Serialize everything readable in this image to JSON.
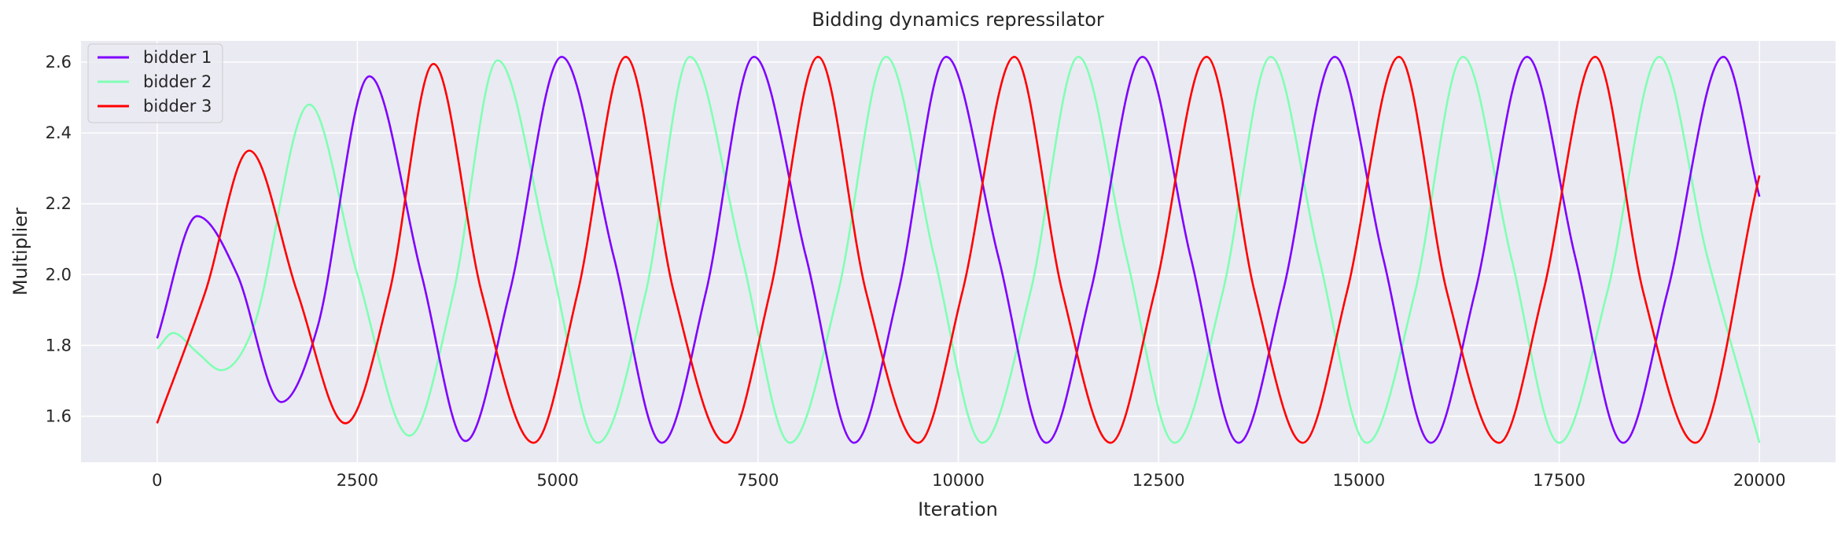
{
  "chart_data": {
    "type": "line",
    "title": "Bidding dynamics repressilator",
    "xlabel": "Iteration",
    "ylabel": "Multiplier",
    "xlim": [
      -950,
      20950
    ],
    "ylim": [
      1.47,
      2.66
    ],
    "xticks": [
      0,
      2500,
      5000,
      7500,
      10000,
      12500,
      15000,
      17500,
      20000
    ],
    "xtick_labels": [
      "0",
      "2500",
      "5000",
      "7500",
      "10000",
      "12500",
      "15000",
      "17500",
      "20000"
    ],
    "yticks": [
      1.6,
      1.8,
      2.0,
      2.2,
      2.4,
      2.6
    ],
    "ytick_labels": [
      "1.6",
      "1.8",
      "2.0",
      "2.2",
      "2.4",
      "2.6"
    ],
    "grid": true,
    "legend_position": "top-left",
    "colors": {
      "background": "#eaeaf2",
      "grid": "#ffffff",
      "bidder1": "#7f00ff",
      "bidder2": "#80ffb4",
      "bidder3": "#ff0000"
    },
    "series": [
      {
        "name": "bidder 1",
        "color": "#7f00ff",
        "x": [
          0,
          500,
          1000,
          1550,
          2000,
          2650,
          3300,
          3850,
          4400,
          5050,
          5700,
          6300,
          6850,
          7450,
          8100,
          8700,
          9250,
          9850,
          10500,
          11100,
          11650,
          12300,
          12900,
          13500,
          14050,
          14700,
          15300,
          15900,
          16450,
          17100,
          17700,
          18300,
          18850,
          19550,
          20000
        ],
        "y": [
          1.82,
          2.165,
          2.0,
          1.64,
          1.85,
          2.56,
          2.0,
          1.53,
          1.95,
          2.615,
          2.05,
          1.525,
          1.95,
          2.615,
          2.05,
          1.525,
          1.95,
          2.615,
          2.05,
          1.525,
          1.95,
          2.615,
          2.05,
          1.525,
          1.95,
          2.615,
          2.05,
          1.525,
          1.95,
          2.615,
          2.05,
          1.525,
          1.95,
          2.615,
          2.22
        ]
      },
      {
        "name": "bidder 2",
        "color": "#80ffb4",
        "x": [
          0,
          200,
          500,
          800,
          1200,
          1900,
          2500,
          3150,
          3700,
          4250,
          4900,
          5500,
          6100,
          6650,
          7300,
          7900,
          8500,
          9100,
          9700,
          10300,
          10900,
          11500,
          12100,
          12700,
          13300,
          13900,
          14500,
          15100,
          15700,
          16300,
          16900,
          17500,
          18100,
          18750,
          19350,
          20000
        ],
        "y": [
          1.79,
          1.835,
          1.78,
          1.73,
          1.85,
          2.48,
          2.0,
          1.545,
          1.95,
          2.605,
          2.05,
          1.525,
          1.95,
          2.615,
          2.05,
          1.525,
          1.95,
          2.615,
          2.05,
          1.525,
          1.95,
          2.615,
          2.05,
          1.525,
          1.95,
          2.615,
          2.05,
          1.525,
          1.95,
          2.615,
          2.05,
          1.525,
          1.95,
          2.615,
          2.05,
          1.525
        ]
      },
      {
        "name": "bidder 3",
        "color": "#ff0000",
        "x": [
          0,
          600,
          1150,
          1750,
          2350,
          2900,
          3450,
          4050,
          4700,
          5250,
          5850,
          6450,
          7100,
          7650,
          8250,
          8850,
          9500,
          10050,
          10700,
          11300,
          11900,
          12450,
          13100,
          13700,
          14300,
          14850,
          15500,
          16100,
          16750,
          17300,
          17950,
          18550,
          19200,
          20000
        ],
        "y": [
          1.58,
          1.95,
          2.35,
          1.95,
          1.58,
          1.95,
          2.595,
          1.95,
          1.525,
          1.95,
          2.615,
          1.95,
          1.525,
          1.95,
          2.615,
          1.95,
          1.525,
          1.95,
          2.615,
          1.95,
          1.525,
          1.95,
          2.615,
          1.95,
          1.525,
          1.95,
          2.615,
          1.95,
          1.525,
          1.95,
          2.615,
          1.95,
          1.525,
          2.28
        ]
      }
    ]
  }
}
